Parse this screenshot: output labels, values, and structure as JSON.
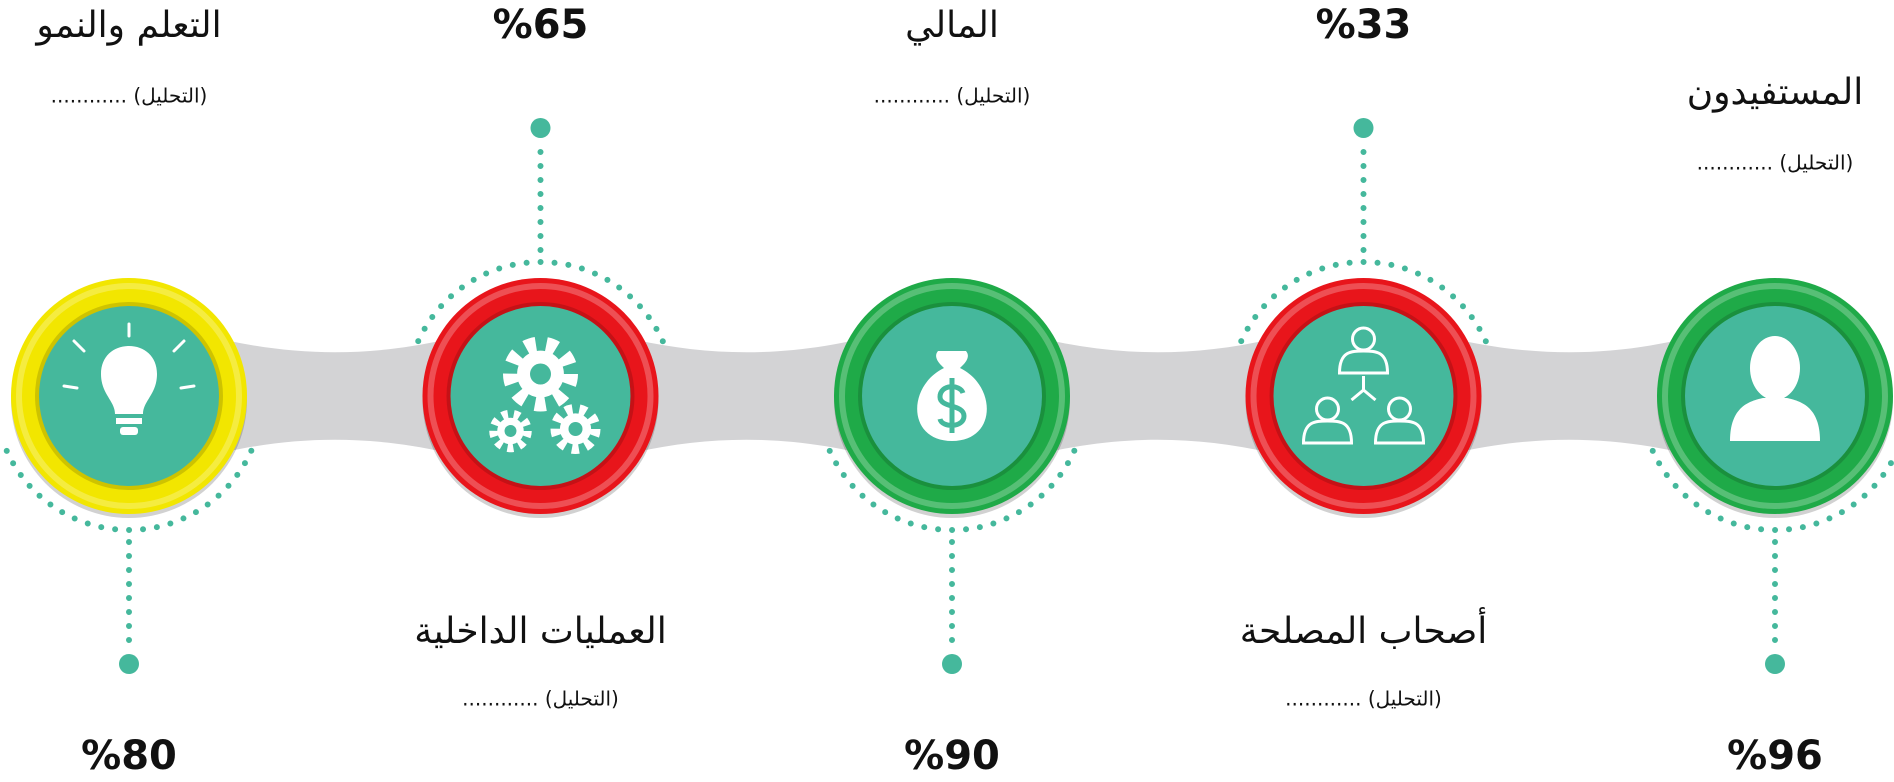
{
  "nodes": [
    {
      "title": "المستفيدون",
      "analysis": "(التحليل) ............",
      "percent": "%96",
      "ring_color": "#1faa48"
    },
    {
      "title": "أصحاب المصلحة",
      "analysis": "(التحليل) ............",
      "percent": "%33",
      "ring_color": "#e8151b"
    },
    {
      "title": "المالي",
      "analysis": "(التحليل) ............",
      "percent": "%90",
      "ring_color": "#1faa48"
    },
    {
      "title": "العمليات الداخلية",
      "analysis": "(التحليل) ............",
      "percent": "%65",
      "ring_color": "#e8151b"
    },
    {
      "title": "التعلم والنمو",
      "analysis": "(التحليل) ............",
      "percent": "%80",
      "ring_color": "#f2e600"
    }
  ]
}
